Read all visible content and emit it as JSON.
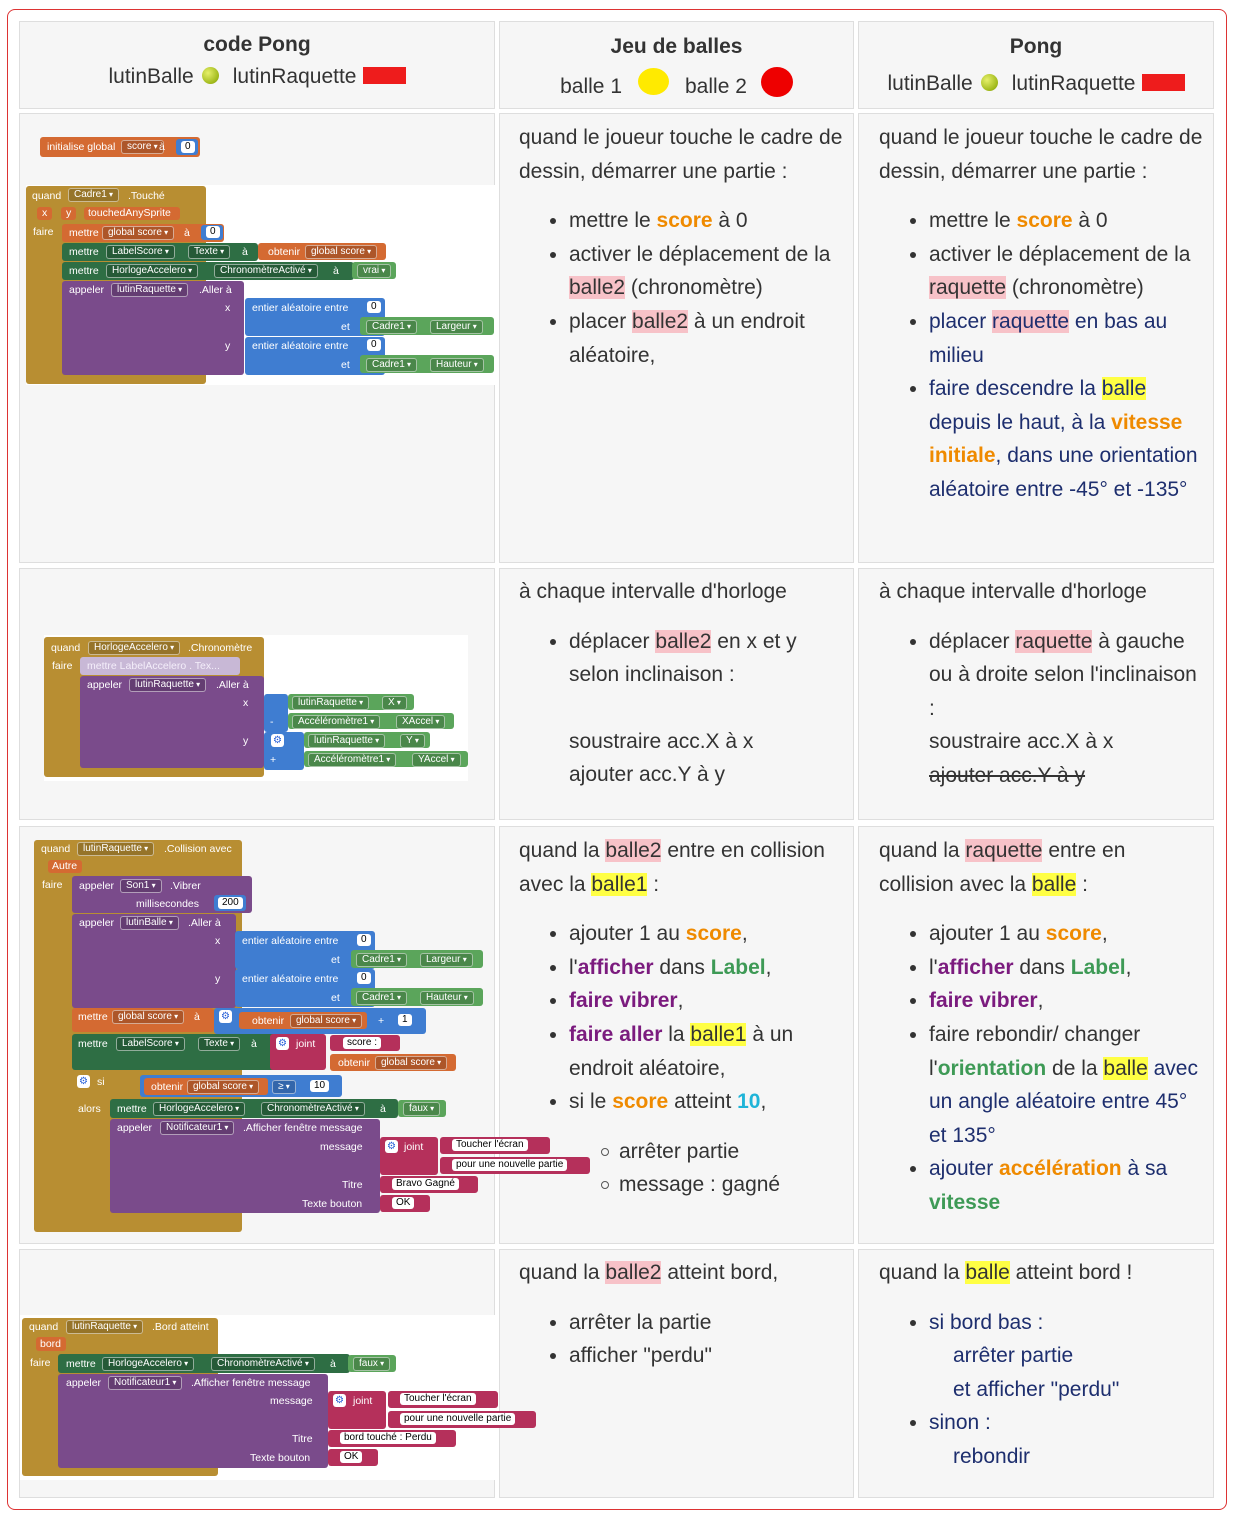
{
  "header": {
    "col1_title": "code  Pong",
    "col1_sprite_ball": "lutinBalle",
    "col1_sprite_paddle": "lutinRaquette",
    "col2_title": "Jeu de balles",
    "col2_ball1": "balle 1",
    "col2_ball2": "balle 2",
    "col3_title": "Pong",
    "col3_sprite_ball": "lutinBalle",
    "col3_sprite_paddle": "lutinRaquette"
  },
  "colors": {
    "border": "#dd3333",
    "pink_highlight": "#f7c2c8",
    "yellow_highlight": "#ffff44",
    "orange": "#ef8a00",
    "green": "#3e9a56",
    "purple": "#7b1b7e",
    "cyan": "#1fb4d8",
    "navy": "#1d2e6e"
  },
  "rows": [
    {
      "jeu": {
        "intro": "quand le joueur touche le cadre de dessin, démarrer une partie :",
        "i1a": "mettre le ",
        "i1b": "score",
        "i1c": " à 0",
        "i2a": "activer le déplacement de la ",
        "i2b": "balle2",
        "i2c": " (chronomètre)",
        "i3a": "placer ",
        "i3b": "balle2",
        "i3c": " à un endroit aléatoire,"
      },
      "pong": {
        "intro": "quand le joueur touche le cadre de dessin, démarrer une partie :",
        "i1a": "mettre le ",
        "i1b": "score",
        "i1c": " à 0",
        "i2a": "activer le déplacement de la ",
        "i2b": "raquette",
        "i2c": " (chronomètre)",
        "i3a": "placer ",
        "i3b": "raquette",
        "i3c": " en bas au milieu",
        "i4a": "faire descendre la ",
        "i4b": "balle",
        "i4c": " depuis le haut, à la ",
        "i4d": "vitesse initiale",
        "i4e": ", dans une orientation aléatoire entre -45° et -135°"
      },
      "blocks": {
        "init": "initialise global",
        "init_var": "score",
        "a": "à",
        "zero": "0",
        "quand": "quand",
        "cadre1": "Cadre1",
        "touche": ".Touché",
        "x": "x",
        "y": "y",
        "touchedAnySprite": "touchedAnySprite",
        "faire": "faire",
        "mettre": "mettre",
        "global_score": "global score",
        "labelscore": "LabelScore",
        "texte": "Texte",
        "obtenir": "obtenir",
        "horloge": "HorlogeAccelero",
        "chrono_active": "ChronomètreActivé",
        "vrai": "vrai",
        "appeler": "appeler",
        "lutinraquette": "lutinRaquette",
        "aller_a": ".Aller à",
        "entier": "entier aléatoire entre",
        "et": "et",
        "largeur": "Largeur",
        "hauteur": "Hauteur"
      }
    },
    {
      "jeu": {
        "intro": "à chaque intervalle d'horloge",
        "i1a": "déplacer ",
        "i1b": "balle2",
        "i1c": " en x et y selon inclinaison :",
        "l2": "soustraire acc.X à x",
        "l3": "ajouter acc.Y à y"
      },
      "pong": {
        "intro": "à chaque intervalle d'horloge",
        "i1a": "déplacer ",
        "i1b": "raquette",
        "i1c": " à gauche ou à droite selon l'inclinaison :",
        "l2": "soustraire acc.X à x",
        "l3": "ajouter acc.Y à y"
      },
      "blocks": {
        "quand": "quand",
        "horloge": "HorlogeAccelero",
        "chronometre": ".Chronomètre",
        "faire": "faire",
        "mettre_ghost": "mettre  LabelAccelero . Tex...",
        "appeler": "appeler",
        "lutinraquette": "lutinRaquette",
        "aller_a": ".Aller à",
        "x": "x",
        "y": "y",
        "X": "X",
        "Y": "Y",
        "minus": "-",
        "plus": "+",
        "accel": "Accéléromètre1",
        "xaccel": "XAccel",
        "yaccel": "YAccel"
      }
    },
    {
      "jeu": {
        "i0a": "quand la ",
        "i0b": "balle2",
        "i0c": " entre en collision avec la ",
        "i0d": "balle1",
        "i0e": " :",
        "i1a": "ajouter 1 au ",
        "i1b": "score",
        "i1c": ",",
        "i2a": "l'",
        "i2b": "afficher",
        "i2c": " dans ",
        "i2d": "Label",
        "i2e": ",",
        "i3a": "faire vibrer",
        "i3b": ",",
        "i4a": "faire aller",
        "i4b": " la ",
        "i4c": "balle1",
        "i4d": " à un endroit aléatoire,",
        "i5a": "si le ",
        "i5b": "score",
        "i5c": " atteint ",
        "i5d": "10",
        "i5e": ",",
        "s1": "arrêter partie",
        "s2": "message : gagné"
      },
      "pong": {
        "i0a": "quand la ",
        "i0b": "raquette",
        "i0c": " entre en collision avec la ",
        "i0d": "balle",
        "i0e": " :",
        "i1a": "ajouter 1 au ",
        "i1b": "score",
        "i1c": ",",
        "i2a": "l'",
        "i2b": "afficher",
        "i2c": " dans ",
        "i2d": "Label",
        "i2e": ",",
        "i3a": "faire vibrer",
        "i3b": ",",
        "i4a": "faire rebondir/ changer l'",
        "i4b": "orientation",
        "i4c": " de la ",
        "i4d": "balle",
        "i4e": " avec un angle aléatoire entre 45° et 135°",
        "i5a": "ajouter ",
        "i5b": "accélération",
        "i5c": " à sa ",
        "i5d": "vitesse"
      },
      "blocks": {
        "quand": "quand",
        "lutinraquette": "lutinRaquette",
        "collision": ".Collision avec",
        "autre": "Autre",
        "faire": "faire",
        "appeler": "appeler",
        "son1": "Son1",
        "vibrer": ".Vibrer",
        "ms": "millisecondes",
        "n200": "200",
        "lutinballe": "lutinBalle",
        "aller_a": ".Aller à",
        "x": "x",
        "y": "y",
        "entier": "entier aléatoire entre",
        "zero": "0",
        "et": "et",
        "cadre1": "Cadre1",
        "largeur": "Largeur",
        "hauteur": "Hauteur",
        "mettre": "mettre",
        "global_score": "global score",
        "a": "à",
        "obtenir": "obtenir",
        "plus": "+",
        "one": "1",
        "labelscore": "LabelScore",
        "texte": "Texte",
        "joint": "joint",
        "score_str": "score : ",
        "si": "si",
        "ge": "≥",
        "ten": "10",
        "alors": "alors",
        "horloge": "HorlogeAccelero",
        "chrono_active": "ChronomètreActivé",
        "faux": "faux",
        "notif": "Notificateur1",
        "afficher_msg": ".Afficher fenêtre message",
        "message": "message",
        "toucher": "Toucher l'écran",
        "pour": "pour une nouvelle partie",
        "titre": "Titre",
        "bravo": "Bravo Gagné",
        "texte_bouton": "Texte bouton",
        "ok": "OK"
      }
    },
    {
      "jeu": {
        "i0a": "quand la ",
        "i0b": "balle2",
        "i0c": " atteint bord,",
        "i1": "arrêter la partie",
        "i2": "afficher \"perdu\""
      },
      "pong": {
        "i0a": "quand la ",
        "i0b": "balle",
        "i0c": " atteint bord !",
        "i1": "si bord bas :",
        "l1": "arrêter partie",
        "l2": "et afficher \"perdu\"",
        "i2": "sinon :",
        "l3": "rebondir"
      },
      "blocks": {
        "quand": "quand",
        "lutinraquette": "lutinRaquette",
        "bord_atteint": ".Bord atteint",
        "bord": "bord",
        "faire": "faire",
        "mettre": "mettre",
        "horloge": "HorlogeAccelero",
        "chrono_active": "ChronomètreActivé",
        "a": "à",
        "faux": "faux",
        "appeler": "appeler",
        "notif": "Notificateur1",
        "afficher_msg": ".Afficher fenêtre message",
        "message": "message",
        "joint": "joint",
        "toucher": "Toucher l'écran",
        "pour": "pour une nouvelle partie",
        "titre": "Titre",
        "perdu": "bord touché : Perdu",
        "texte_bouton": "Texte bouton",
        "ok": "OK"
      }
    }
  ]
}
